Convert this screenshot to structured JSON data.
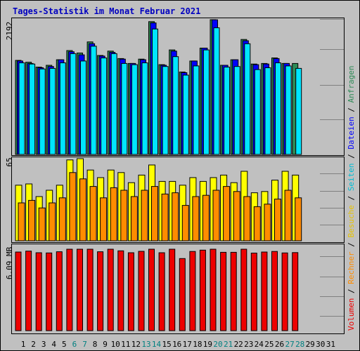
{
  "title": "Tages-Statistik im Monat Februar 2021",
  "colors": {
    "background": "#c0c0c0",
    "frame": "#000000",
    "title": "#0000c0",
    "grid": "#808080",
    "bar_outline": "#000000",
    "anfragen": "#2e8b57",
    "dateien": "#0000ff",
    "seiten": "#00e5ff",
    "besuche": "#ffff00",
    "rechner": "#ff8c00",
    "volumen": "#ee0000",
    "weekday_label": "#000000",
    "weekend_label": "#008080"
  },
  "chart_data": [
    {
      "type": "bar",
      "panel": "top",
      "axis_max_label": "2192",
      "ylim": [
        0,
        2192
      ],
      "categories": [
        "1",
        "2",
        "3",
        "4",
        "5",
        "6",
        "7",
        "8",
        "9",
        "10",
        "11",
        "12",
        "13",
        "14",
        "15",
        "16",
        "17",
        "18",
        "19",
        "20",
        "21",
        "22",
        "23",
        "24",
        "25",
        "26",
        "27",
        "28",
        "29",
        "30",
        "31"
      ],
      "series": [
        {
          "name": "Anfragen",
          "color": "#2e8b57",
          "values": [
            1530,
            1500,
            1420,
            1450,
            1540,
            1690,
            1650,
            1830,
            1610,
            1680,
            1560,
            1480,
            1550,
            2160,
            1460,
            1700,
            1340,
            1520,
            1730,
            2210,
            1450,
            1540,
            1870,
            1470,
            1480,
            1570,
            1480,
            1480,
            null,
            null,
            null
          ]
        },
        {
          "name": "Dateien",
          "color": "#0000ff",
          "values": [
            1520,
            1480,
            1410,
            1430,
            1540,
            1670,
            1620,
            1800,
            1600,
            1660,
            1550,
            1480,
            1540,
            2140,
            1450,
            1680,
            1330,
            1520,
            1730,
            2190,
            1450,
            1540,
            1850,
            1460,
            1470,
            1560,
            1480,
            null,
            null,
            null,
            null
          ]
        },
        {
          "name": "Seiten",
          "color": "#00e5ff",
          "values": [
            1490,
            1470,
            1390,
            1400,
            1490,
            1640,
            1520,
            1760,
            1570,
            1640,
            1480,
            1460,
            1490,
            2040,
            1430,
            1590,
            1290,
            1440,
            1700,
            2060,
            1420,
            1430,
            1800,
            1380,
            1410,
            1490,
            1440,
            1400,
            null,
            null,
            null
          ]
        }
      ]
    },
    {
      "type": "bar",
      "panel": "middle",
      "axis_max_label": "65",
      "ylim": [
        0,
        65
      ],
      "categories": [
        "1",
        "2",
        "3",
        "4",
        "5",
        "6",
        "7",
        "8",
        "9",
        "10",
        "11",
        "12",
        "13",
        "14",
        "15",
        "16",
        "17",
        "18",
        "19",
        "20",
        "21",
        "22",
        "23",
        "24",
        "25",
        "26",
        "27",
        "28",
        "29",
        "30",
        "31"
      ],
      "series": [
        {
          "name": "Besuche",
          "color": "#ffff00",
          "values": [
            44,
            45,
            35,
            40,
            44,
            64,
            66,
            56,
            50,
            56,
            54,
            46,
            52,
            60,
            47,
            47,
            44,
            50,
            47,
            50,
            52,
            46,
            55,
            38,
            39,
            48,
            55,
            52,
            null,
            null,
            null
          ]
        },
        {
          "name": "Rechner",
          "color": "#ff8c00",
          "values": [
            30,
            32,
            26,
            30,
            34,
            54,
            49,
            43,
            34,
            42,
            40,
            35,
            40,
            43,
            37,
            38,
            28,
            35,
            36,
            40,
            43,
            39,
            35,
            27,
            29,
            33,
            40,
            34,
            null,
            null,
            null
          ]
        }
      ]
    },
    {
      "type": "bar",
      "panel": "bottom",
      "axis_max_label": "6.09 MB",
      "ylim": [
        0,
        6.09
      ],
      "unit": "MB",
      "categories": [
        "1",
        "2",
        "3",
        "4",
        "5",
        "6",
        "7",
        "8",
        "9",
        "10",
        "11",
        "12",
        "13",
        "14",
        "15",
        "16",
        "17",
        "18",
        "19",
        "20",
        "21",
        "22",
        "23",
        "24",
        "25",
        "26",
        "27",
        "28",
        "29",
        "30",
        "31"
      ],
      "series": [
        {
          "name": "Volumen",
          "color": "#ee0000",
          "values": [
            5.88,
            5.95,
            5.83,
            5.81,
            5.9,
            6.12,
            6.09,
            6.35,
            5.9,
            6.17,
            5.97,
            5.83,
            5.93,
            6.28,
            5.83,
            6.14,
            5.39,
            5.92,
            6.02,
            6.35,
            5.86,
            5.86,
            6.2,
            5.8,
            5.88,
            5.92,
            5.81,
            5.84,
            null,
            null,
            null
          ]
        }
      ]
    }
  ],
  "days": [
    {
      "label": "1",
      "weekend": false
    },
    {
      "label": "2",
      "weekend": false
    },
    {
      "label": "3",
      "weekend": false
    },
    {
      "label": "4",
      "weekend": false
    },
    {
      "label": "5",
      "weekend": false
    },
    {
      "label": "6",
      "weekend": true
    },
    {
      "label": "7",
      "weekend": true
    },
    {
      "label": "8",
      "weekend": false
    },
    {
      "label": "9",
      "weekend": false
    },
    {
      "label": "10",
      "weekend": false
    },
    {
      "label": "11",
      "weekend": false
    },
    {
      "label": "12",
      "weekend": false
    },
    {
      "label": "13",
      "weekend": true
    },
    {
      "label": "14",
      "weekend": true
    },
    {
      "label": "15",
      "weekend": false
    },
    {
      "label": "16",
      "weekend": false
    },
    {
      "label": "17",
      "weekend": false
    },
    {
      "label": "18",
      "weekend": false
    },
    {
      "label": "19",
      "weekend": false
    },
    {
      "label": "20",
      "weekend": true
    },
    {
      "label": "21",
      "weekend": true
    },
    {
      "label": "22",
      "weekend": false
    },
    {
      "label": "23",
      "weekend": false
    },
    {
      "label": "24",
      "weekend": false
    },
    {
      "label": "25",
      "weekend": false
    },
    {
      "label": "26",
      "weekend": false
    },
    {
      "label": "27",
      "weekend": true
    },
    {
      "label": "28",
      "weekend": true
    },
    {
      "label": "29",
      "weekend": false
    },
    {
      "label": "30",
      "weekend": false
    },
    {
      "label": "31",
      "weekend": false
    }
  ],
  "legend": [
    {
      "text": "Volumen",
      "color": "#ee0000"
    },
    {
      "text": " / ",
      "color": "#000000"
    },
    {
      "text": "Rechner",
      "color": "#ff8c00"
    },
    {
      "text": " / ",
      "color": "#000000"
    },
    {
      "text": "Besuche",
      "color": "#e6c200"
    },
    {
      "text": " / ",
      "color": "#000000"
    },
    {
      "text": "Seiten",
      "color": "#00bcd4"
    },
    {
      "text": " / ",
      "color": "#000000"
    },
    {
      "text": "Dateien",
      "color": "#0000ff"
    },
    {
      "text": " / ",
      "color": "#000000"
    },
    {
      "text": "Anfragen",
      "color": "#2e8b57"
    }
  ]
}
